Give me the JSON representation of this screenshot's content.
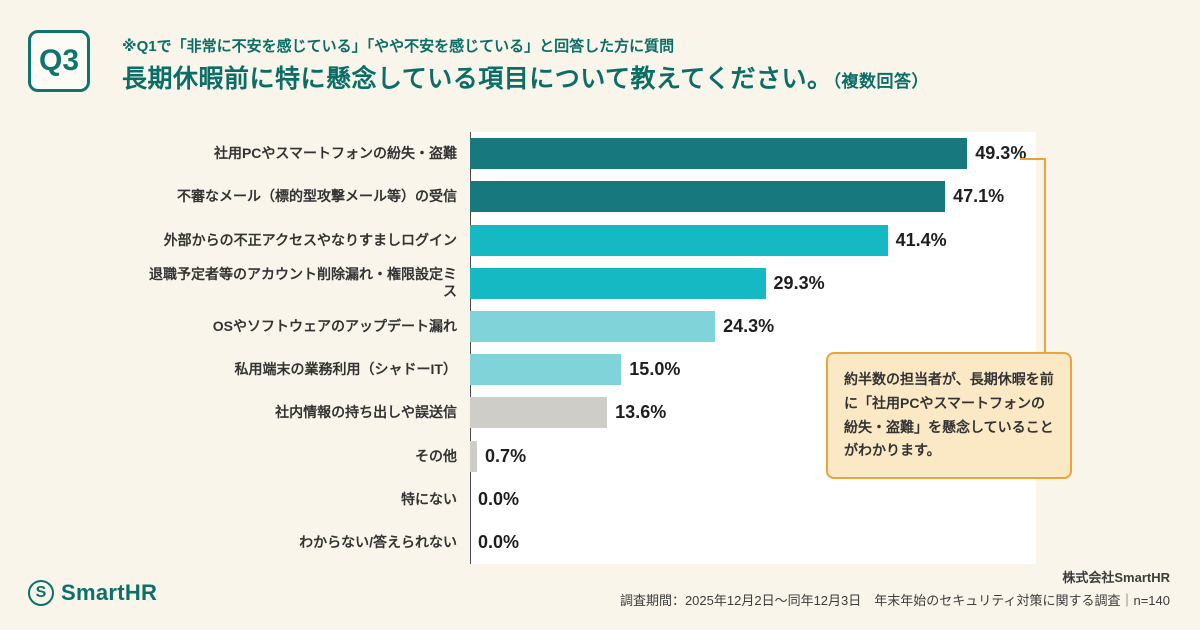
{
  "header": {
    "badge": "Q3",
    "note": "※Q1で「非常に不安を感じている」「やや不安を感じている」と回答した方に質問",
    "title": "長期休暇前に特に懸念している項目について教えてください。",
    "title_suffix": "（複数回答）"
  },
  "chart_data": {
    "type": "bar",
    "orientation": "horizontal",
    "title": "長期休暇前に特に懸念している項目について教えてください。（複数回答）",
    "xlim": [
      0,
      57.5
    ],
    "grid": false,
    "legend": "none",
    "categories": [
      "社用PCやスマートフォンの紛失・盗難",
      "不審なメール（標的型攻撃メール等）の受信",
      "外部からの不正アクセスやなりすましログイン",
      "退職予定者等のアカウント削除漏れ・権限設定ミス",
      "OSやソフトウェアのアップデート漏れ",
      "私用端末の業務利用（シャドーIT）",
      "社内情報の持ち出しや誤送信",
      "その他",
      "特にない",
      "わからない/答えられない"
    ],
    "values": [
      49.3,
      47.1,
      41.4,
      29.3,
      24.3,
      15.0,
      13.6,
      0.7,
      0.0,
      0.0
    ],
    "value_labels": [
      "49.3%",
      "47.1%",
      "41.4%",
      "29.3%",
      "24.3%",
      "15.0%",
      "13.6%",
      "0.7%",
      "0.0%",
      "0.0%"
    ],
    "colors": [
      "#17787D",
      "#17787D",
      "#14B9C4",
      "#14B9C4",
      "#7FD3D9",
      "#7FD3D9",
      "#CFCDC8",
      "#CFCDC8",
      "#CFCDC8",
      "#CFCDC8"
    ]
  },
  "annotation": {
    "text": "約半数の担当者が、長期休暇を前に「社用PCやスマートフォンの紛失・盗難」を懸念していることがわかります。",
    "border_color": "#E9A43C",
    "bg_color": "#FBE9C5"
  },
  "footer": {
    "logo_mark": "S",
    "logo_text": "SmartHR",
    "company": "株式会社SmartHR",
    "survey_info": "調査期間：2025年12月2日〜同年12月3日　年末年始のセキュリティ対策に関する調査｜n=140"
  },
  "colors": {
    "background": "#F9F5EA",
    "header_text": "#0B6E66",
    "bar_dark": "#17787D",
    "bar_mid": "#14B9C4",
    "bar_light": "#7FD3D9",
    "bar_gray": "#CFCDC8",
    "accent_orange": "#E9A43C"
  }
}
